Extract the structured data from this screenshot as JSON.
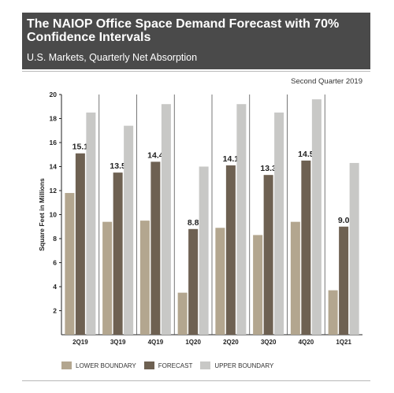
{
  "header": {
    "title": "The NAIOP Office Space Demand Forecast with 70% Confidence Intervals",
    "subtitle": "U.S. Markets, Quarterly Net Absorption"
  },
  "note": "Second Quarter 2019",
  "colors": {
    "lower": "#b3a68f",
    "forecast": "#6e6152",
    "upper": "#c8c8c6"
  },
  "chart_data": {
    "type": "bar",
    "ylabel": "Square Feet in Millions",
    "ylim": [
      0,
      20
    ],
    "yticks": [
      2,
      4,
      6,
      8,
      10,
      12,
      14,
      16,
      18,
      20
    ],
    "categories": [
      "2Q19",
      "3Q19",
      "4Q19",
      "1Q20",
      "2Q20",
      "3Q20",
      "4Q20",
      "1Q21"
    ],
    "series": [
      {
        "name": "LOWER BOUNDARY",
        "values": [
          11.8,
          9.4,
          9.5,
          3.5,
          8.9,
          8.3,
          9.4,
          3.7
        ]
      },
      {
        "name": "FORECAST",
        "values": [
          15.1,
          13.5,
          14.4,
          8.8,
          14.1,
          13.3,
          14.5,
          9.0
        ]
      },
      {
        "name": "UPPER BOUNDARY",
        "values": [
          18.5,
          17.4,
          19.2,
          14.0,
          19.2,
          18.5,
          19.6,
          14.3
        ]
      }
    ],
    "data_labels": [
      "15.1",
      "13.5",
      "14.4",
      "8.8",
      "14.1",
      "13.3",
      "14.5",
      "9.0"
    ],
    "legend": "bottom",
    "grid": false
  }
}
